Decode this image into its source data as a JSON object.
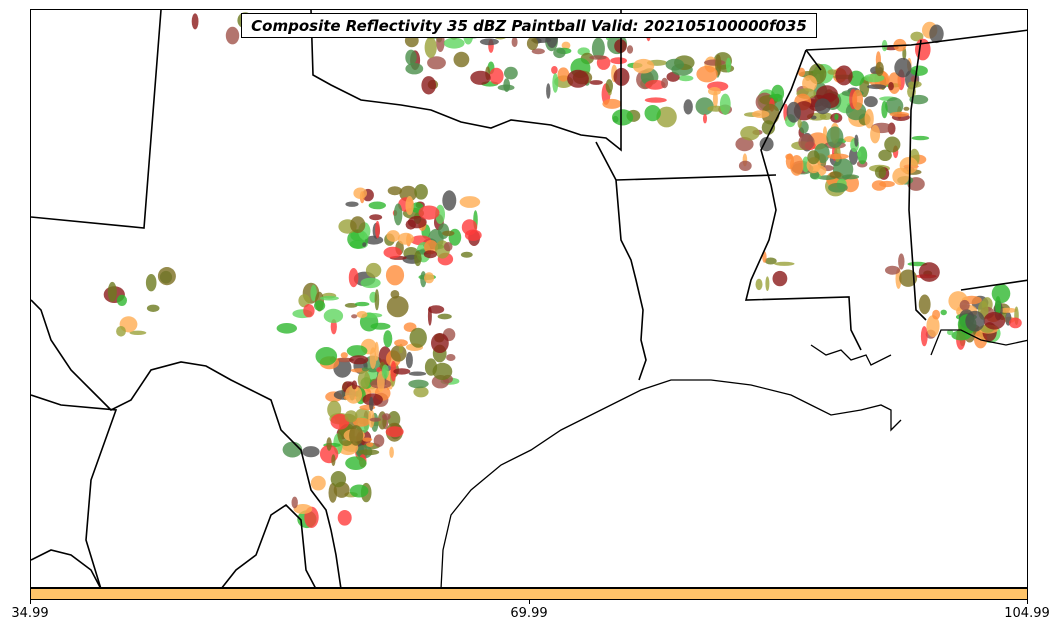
{
  "title": "Composite Reflectivity 35 dBZ Paintball Valid: 202105100000f035",
  "colorbar": {
    "color": "#ffc469",
    "ticks": [
      "34.99",
      "69.99",
      "104.99"
    ]
  },
  "member_colors": [
    "#8b1a1a",
    "#a0524a",
    "#ff3b3b",
    "#ff8c3a",
    "#ffad52",
    "#9aa13a",
    "#6d7a1f",
    "#2fb82f",
    "#5fd65f",
    "#4a8f4a",
    "#4d4d4d",
    "#7a6e1f"
  ]
}
